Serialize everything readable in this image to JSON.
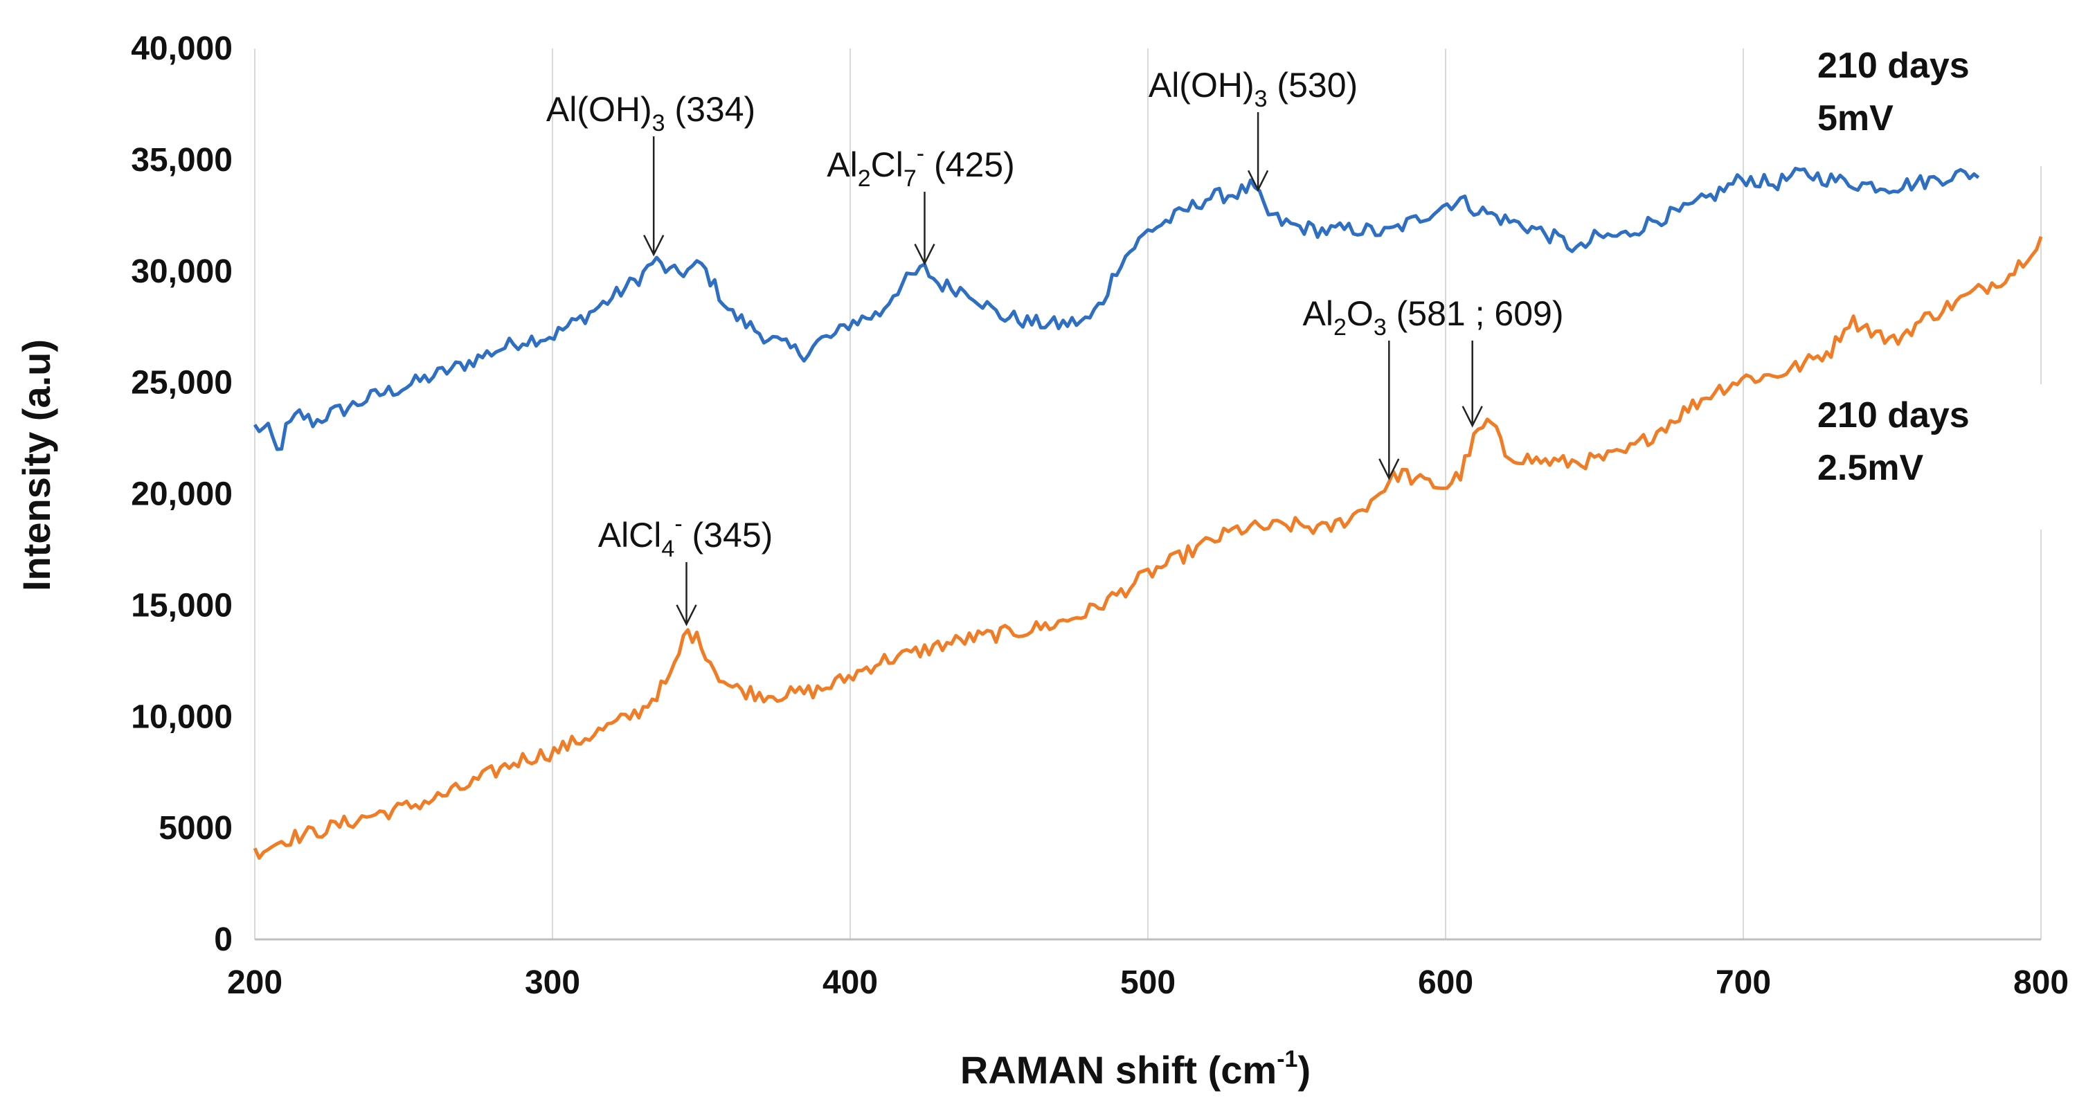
{
  "chart_data": {
    "type": "line",
    "xlabel": "RAMAN  shift (cm",
    "xlabel_sup": "-1",
    "xlabel_end": ")",
    "ylabel": "Intensity (a.u)",
    "xlim": [
      200,
      800
    ],
    "ylim": [
      0,
      40000
    ],
    "grid": "vertical",
    "x_ticks": [
      "200",
      "300",
      "400",
      "500",
      "600",
      "700",
      "800"
    ],
    "y_ticks": [
      "0",
      "5000",
      "10,000",
      "15,000",
      "20,000",
      "25,000",
      "30,000",
      "35,000",
      "40,000"
    ],
    "series": [
      {
        "name": "210 days 5mV",
        "color": "#2e6fc4",
        "x": [
          200,
          205,
          208,
          210,
          215,
          220,
          225,
          230,
          240,
          250,
          260,
          270,
          280,
          290,
          300,
          310,
          320,
          330,
          334,
          340,
          345,
          350,
          360,
          370,
          380,
          385,
          390,
          395,
          400,
          410,
          415,
          420,
          425,
          430,
          440,
          450,
          455,
          460,
          470,
          480,
          485,
          490,
          500,
          510,
          520,
          530,
          535,
          537,
          540,
          545,
          550,
          560,
          570,
          580,
          590,
          600,
          605,
          610,
          620,
          630,
          640,
          645,
          650,
          660,
          670,
          680,
          690,
          700,
          710,
          720,
          730,
          740,
          750,
          760,
          770,
          780
        ],
        "y": [
          23000,
          22800,
          21700,
          22800,
          23600,
          23200,
          23600,
          23800,
          24400,
          24800,
          25300,
          25800,
          26400,
          26900,
          27100,
          27900,
          28800,
          29800,
          30500,
          29900,
          30000,
          30300,
          28100,
          27200,
          26500,
          26300,
          26900,
          27100,
          27700,
          28100,
          29100,
          29700,
          30100,
          29400,
          29100,
          28000,
          27900,
          27700,
          27600,
          27800,
          28700,
          30300,
          31800,
          32500,
          33300,
          33500,
          33800,
          33400,
          32600,
          32200,
          32000,
          31800,
          31900,
          31700,
          32300,
          33000,
          33200,
          32800,
          32300,
          31900,
          31300,
          30900,
          31500,
          31600,
          32300,
          32700,
          33400,
          34200,
          33900,
          34400,
          34100,
          33900,
          33800,
          34000,
          34300,
          34400
        ]
      },
      {
        "name": "210 days 2.5mV",
        "color": "#f07d26",
        "x": [
          200,
          210,
          220,
          230,
          240,
          250,
          260,
          270,
          280,
          290,
          300,
          310,
          320,
          330,
          340,
          345,
          350,
          355,
          360,
          370,
          380,
          390,
          400,
          410,
          420,
          430,
          440,
          450,
          460,
          470,
          480,
          490,
          500,
          510,
          520,
          530,
          540,
          550,
          560,
          570,
          575,
          580,
          585,
          590,
          600,
          605,
          610,
          615,
          620,
          630,
          640,
          650,
          660,
          670,
          680,
          690,
          700,
          710,
          720,
          730,
          735,
          740,
          750,
          760,
          770,
          780,
          790,
          800
        ],
        "y": [
          3900,
          4500,
          4800,
          5200,
          5600,
          5900,
          6300,
          6800,
          7500,
          8100,
          8400,
          9000,
          9600,
          10300,
          11800,
          13900,
          13300,
          12000,
          11300,
          11000,
          11000,
          11200,
          11800,
          12500,
          12800,
          13200,
          13500,
          13700,
          13900,
          14200,
          14700,
          15500,
          16400,
          17100,
          17800,
          18400,
          18500,
          18600,
          18400,
          19100,
          19700,
          20400,
          21000,
          20600,
          20300,
          20900,
          22600,
          23300,
          21800,
          21500,
          21400,
          21500,
          21800,
          22700,
          23700,
          24600,
          25200,
          25300,
          25800,
          26500,
          27800,
          27600,
          26800,
          27800,
          28500,
          29200,
          29900,
          31500
        ]
      }
    ],
    "annotations": [
      {
        "series": 0,
        "x": 334,
        "main": "Al(OH)",
        "sub": "3",
        "sup": "",
        "rest": " (334)"
      },
      {
        "series": 0,
        "x": 425,
        "main": "Al",
        "sub": "2",
        "main2": "Cl",
        "sub2": "7",
        "sup": "-",
        "rest": " (425)"
      },
      {
        "series": 0,
        "x": 537,
        "main": "Al(OH)",
        "sub": "3",
        "sup": "",
        "rest": " (530)"
      },
      {
        "series": 1,
        "x": 345,
        "main": "AlCl",
        "sub": "4",
        "sup": "-",
        "rest": " (345)"
      },
      {
        "series": 1,
        "x": 581,
        "main": "Al",
        "sub": "2",
        "main2": "O",
        "sub2": "3",
        "sup": "",
        "rest": " (581 ; 609)"
      }
    ],
    "series_labels": [
      {
        "line1": "210 days",
        "line2": "5mV"
      },
      {
        "line1": "210 days",
        "line2": "2.5mV"
      }
    ]
  }
}
